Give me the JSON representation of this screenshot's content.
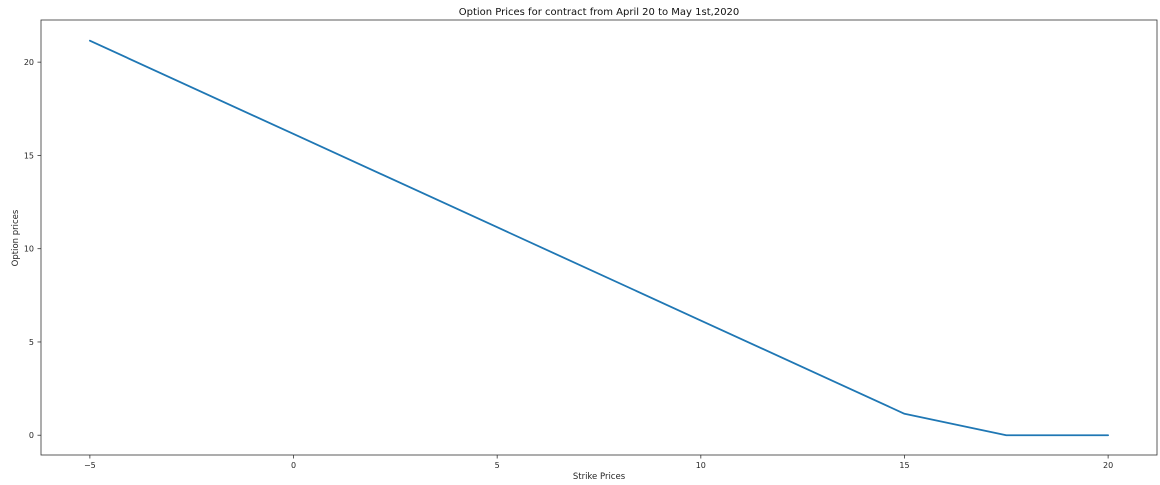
{
  "chart_data": {
    "type": "line",
    "title": "Option Prices for contract from April 20 to May 1st,2020",
    "xlabel": "Strike Prices",
    "ylabel": "Option prices",
    "xlim": [
      -6.2,
      21.2
    ],
    "ylim": [
      -1.06,
      22.26
    ],
    "xticks": [
      -5,
      0,
      5,
      10,
      15,
      20
    ],
    "xtick_labels": [
      "−5",
      "0",
      "5",
      "10",
      "15",
      "20"
    ],
    "yticks": [
      0,
      5,
      10,
      15,
      20
    ],
    "ytick_labels": [
      "0",
      "5",
      "10",
      "15",
      "20"
    ],
    "grid": false,
    "legend": false,
    "series": [
      {
        "color": "#1f77b4",
        "x": [
          -5,
          0,
          5,
          10,
          15,
          17.5,
          20
        ],
        "y": [
          21.15,
          16.15,
          11.15,
          6.15,
          1.15,
          0.0,
          0.0
        ]
      }
    ]
  }
}
